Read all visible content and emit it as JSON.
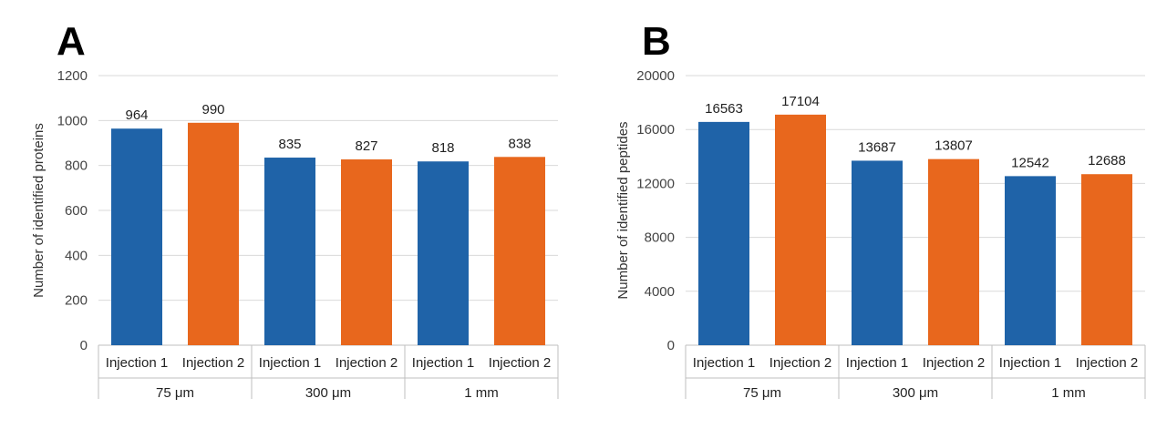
{
  "colors": {
    "injection_1": "#1f63a8",
    "injection_2": "#e8671d",
    "grid": "#d9d9d9",
    "axis": "#bfbfbf"
  },
  "chart_data": [
    {
      "panel": "A",
      "type": "bar",
      "ylabel": "Number of identified proteins",
      "ylim": [
        0,
        1200
      ],
      "yticks": [
        0,
        200,
        400,
        600,
        800,
        1000,
        1200
      ],
      "groups": [
        {
          "label": "75 μm",
          "categories": [
            "Injection 1",
            "Injection 2"
          ],
          "values": [
            964,
            990
          ]
        },
        {
          "label": "300 μm",
          "categories": [
            "Injection 1",
            "Injection 2"
          ],
          "values": [
            835,
            827
          ]
        },
        {
          "label": "1 mm",
          "categories": [
            "Injection 1",
            "Injection 2"
          ],
          "values": [
            818,
            838
          ]
        }
      ],
      "grid": true
    },
    {
      "panel": "B",
      "type": "bar",
      "ylabel": "Number of identified peptides",
      "ylim": [
        0,
        20000
      ],
      "yticks": [
        0,
        4000,
        8000,
        12000,
        16000,
        20000
      ],
      "groups": [
        {
          "label": "75 μm",
          "categories": [
            "Injection 1",
            "Injection 2"
          ],
          "values": [
            16563,
            17104
          ]
        },
        {
          "label": "300 μm",
          "categories": [
            "Injection 1",
            "Injection 2"
          ],
          "values": [
            13687,
            13807
          ]
        },
        {
          "label": "1 mm",
          "categories": [
            "Injection 1",
            "Injection 2"
          ],
          "values": [
            12542,
            12688
          ]
        }
      ],
      "grid": true
    }
  ]
}
